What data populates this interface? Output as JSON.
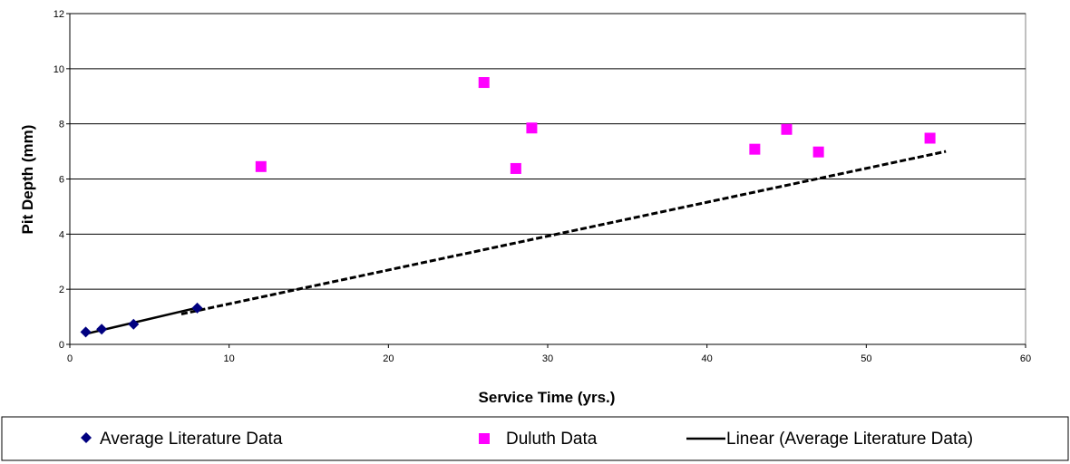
{
  "chart_data": {
    "type": "scatter",
    "xlabel": "Service Time (yrs.)",
    "ylabel": "Pit Depth (mm)",
    "xlim": [
      0,
      60
    ],
    "ylim": [
      0,
      12
    ],
    "x_ticks": [
      "0",
      "10",
      "20",
      "30",
      "40",
      "50",
      "60"
    ],
    "y_ticks": [
      "0",
      "2",
      "4",
      "6",
      "8",
      "10",
      "12"
    ],
    "grid": "horizontal",
    "legend_position": "bottom",
    "series": [
      {
        "name": "Average Literature Data",
        "kind": "scatter",
        "marker": "diamond",
        "color": "#000080",
        "x": [
          1,
          2,
          4,
          8
        ],
        "y": [
          0.45,
          0.55,
          0.73,
          1.32
        ]
      },
      {
        "name": "Duluth Data",
        "kind": "scatter",
        "marker": "square",
        "color": "#FF00FF",
        "x": [
          12,
          26,
          28,
          29,
          43,
          45,
          47,
          54
        ],
        "y": [
          6.45,
          9.5,
          6.38,
          7.85,
          7.08,
          7.8,
          6.98,
          7.48
        ]
      },
      {
        "name": "Linear (Average Literature Data)",
        "kind": "trendline",
        "color": "#000000",
        "x": [
          1,
          8
        ],
        "y": [
          0.38,
          1.33
        ]
      },
      {
        "name": "",
        "kind": "projection",
        "style": "dashed",
        "color": "#000000",
        "x": [
          7,
          55
        ],
        "y": [
          1.1,
          7.0
        ]
      }
    ]
  }
}
